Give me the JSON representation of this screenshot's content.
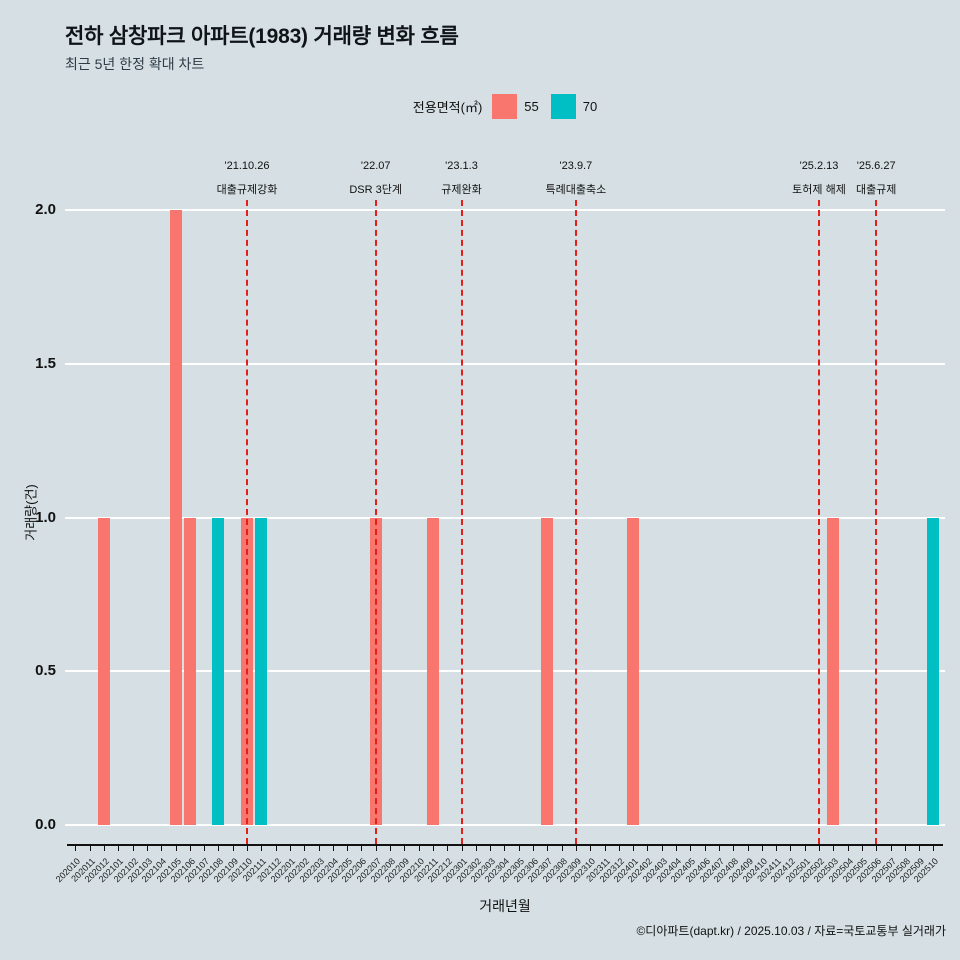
{
  "header": {
    "title": "전하 삼창파크 아파트(1983) 거래량 변화 흐름",
    "subtitle": "최근 5년 한정 확대 차트"
  },
  "legend": {
    "title": "전용면적(㎡)",
    "items": [
      {
        "label": "55",
        "color": "#F8766D"
      },
      {
        "label": "70",
        "color": "#00BFC4"
      }
    ]
  },
  "footer": {
    "credit": "©디아파트(dapt.kr) / 2025.10.03 / 자료=국토교통부 실거래가"
  },
  "chart_data": {
    "type": "bar",
    "title": "전하 삼창파크 아파트(1983) 거래량 변화 흐름",
    "subtitle": "최근 5년 한정 확대 차트",
    "xlabel": "거래년월",
    "ylabel": "거래량(건)",
    "ylim": [
      0,
      2
    ],
    "yticks": [
      0,
      0.5,
      1,
      1.5,
      2
    ],
    "ytick_labels": [
      "0.0",
      "0.5",
      "1.0",
      "1.5",
      "2.0"
    ],
    "grid": true,
    "legend_position": "top",
    "categories": [
      "202010",
      "202011",
      "202012",
      "202101",
      "202102",
      "202103",
      "202104",
      "202105",
      "202106",
      "202107",
      "202108",
      "202109",
      "202110",
      "202111",
      "202112",
      "202201",
      "202202",
      "202203",
      "202204",
      "202205",
      "202206",
      "202207",
      "202208",
      "202209",
      "202210",
      "202211",
      "202212",
      "202301",
      "202302",
      "202303",
      "202304",
      "202305",
      "202306",
      "202307",
      "202308",
      "202309",
      "202310",
      "202311",
      "202312",
      "202401",
      "202402",
      "202403",
      "202404",
      "202405",
      "202406",
      "202407",
      "202408",
      "202409",
      "202410",
      "202411",
      "202412",
      "202501",
      "202502",
      "202503",
      "202504",
      "202505",
      "202506",
      "202507",
      "202508",
      "202509",
      "202510"
    ],
    "series": [
      {
        "name": "55",
        "color": "#F8766D",
        "data": [
          {
            "month": "202012",
            "value": 1
          },
          {
            "month": "202105",
            "value": 2
          },
          {
            "month": "202106",
            "value": 1
          },
          {
            "month": "202110",
            "value": 1
          },
          {
            "month": "202207",
            "value": 1
          },
          {
            "month": "202211",
            "value": 1
          },
          {
            "month": "202307",
            "value": 1
          },
          {
            "month": "202401",
            "value": 1
          },
          {
            "month": "202503",
            "value": 1
          }
        ]
      },
      {
        "name": "70",
        "color": "#00BFC4",
        "data": [
          {
            "month": "202108",
            "value": 1
          },
          {
            "month": "202111",
            "value": 1
          },
          {
            "month": "202510",
            "value": 1
          }
        ]
      }
    ],
    "event_lines": [
      {
        "month": "202110",
        "date": "'21.10.26",
        "label": "대출규제강화",
        "color": "#e12019"
      },
      {
        "month": "202207",
        "date": "'22.07",
        "label": "DSR 3단계",
        "color": "#e12019"
      },
      {
        "month": "202301",
        "date": "'23.1.3",
        "label": "규제완화",
        "color": "#e12019"
      },
      {
        "month": "202309",
        "date": "'23.9.7",
        "label": "특례대출축소",
        "color": "#e12019"
      },
      {
        "month": "202502",
        "date": "'25.2.13",
        "label": "토허제 해제",
        "color": "#e12019"
      },
      {
        "month": "202506",
        "date": "'25.6.27",
        "label": "대출규제",
        "color": "#e12019"
      }
    ]
  }
}
